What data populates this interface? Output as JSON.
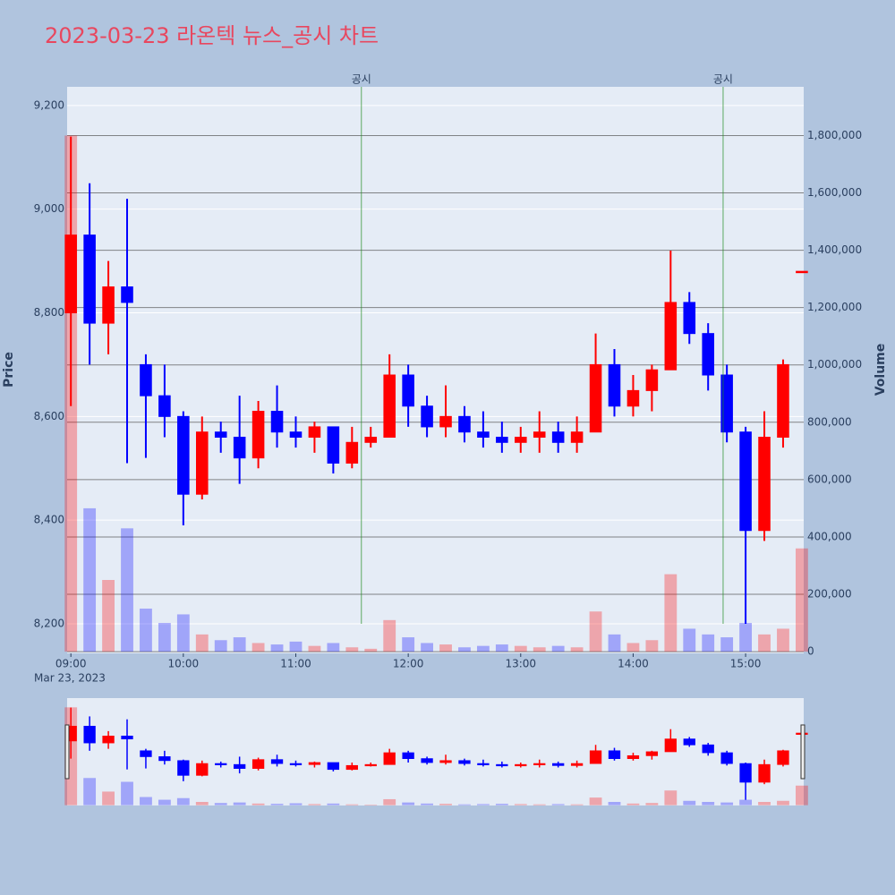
{
  "chart_data": {
    "type": "candlestick",
    "title": "2023-03-23 라온텍 뉴스_공시 차트",
    "y_title": "Price",
    "y2_title": "Volume",
    "increasing_color": "#ff0000",
    "decreasing_color": "#0000ff",
    "x": [
      "2023-03-23 09:00",
      "2023-03-23 09:10",
      "2023-03-23 09:20",
      "2023-03-23 09:30",
      "2023-03-23 09:40",
      "2023-03-23 09:50",
      "2023-03-23 10:00",
      "2023-03-23 10:10",
      "2023-03-23 10:20",
      "2023-03-23 10:30",
      "2023-03-23 10:40",
      "2023-03-23 10:50",
      "2023-03-23 11:00",
      "2023-03-23 11:10",
      "2023-03-23 11:20",
      "2023-03-23 11:30",
      "2023-03-23 11:40",
      "2023-03-23 11:50",
      "2023-03-23 12:00",
      "2023-03-23 12:10",
      "2023-03-23 12:20",
      "2023-03-23 12:30",
      "2023-03-23 12:40",
      "2023-03-23 12:50",
      "2023-03-23 13:00",
      "2023-03-23 13:10",
      "2023-03-23 13:20",
      "2023-03-23 13:30",
      "2023-03-23 13:40",
      "2023-03-23 13:50",
      "2023-03-23 14:00",
      "2023-03-23 14:10",
      "2023-03-23 14:20",
      "2023-03-23 14:30",
      "2023-03-23 14:40",
      "2023-03-23 14:50",
      "2023-03-23 15:00",
      "2023-03-23 15:10",
      "2023-03-23 15:20",
      "2023-03-23 15:30"
    ],
    "open": [
      8800,
      8950,
      8780,
      8850,
      8700,
      8640,
      8600,
      8450,
      8570,
      8560,
      8520,
      8610,
      8570,
      8560,
      8580,
      8510,
      8550,
      8560,
      8680,
      8620,
      8580,
      8600,
      8570,
      8560,
      8550,
      8560,
      8570,
      8550,
      8570,
      8700,
      8620,
      8650,
      8690,
      8820,
      8760,
      8680,
      8570,
      8380,
      8560,
      8880
    ],
    "high": [
      9140,
      9050,
      8900,
      9020,
      8720,
      8700,
      8610,
      8600,
      8590,
      8640,
      8630,
      8660,
      8600,
      8590,
      8580,
      8580,
      8580,
      8720,
      8700,
      8640,
      8660,
      8620,
      8610,
      8590,
      8580,
      8610,
      8590,
      8600,
      8760,
      8730,
      8680,
      8700,
      8920,
      8840,
      8780,
      8700,
      8580,
      8610,
      8710,
      8880
    ],
    "low": [
      8620,
      8700,
      8720,
      8510,
      8520,
      8560,
      8390,
      8440,
      8530,
      8470,
      8500,
      8540,
      8540,
      8530,
      8490,
      8500,
      8540,
      8560,
      8580,
      8560,
      8560,
      8550,
      8540,
      8530,
      8530,
      8530,
      8530,
      8530,
      8570,
      8600,
      8600,
      8610,
      8690,
      8740,
      8650,
      8550,
      8200,
      8360,
      8540,
      8880
    ],
    "close": [
      8950,
      8780,
      8850,
      8820,
      8640,
      8600,
      8450,
      8570,
      8560,
      8520,
      8610,
      8570,
      8560,
      8580,
      8510,
      8550,
      8560,
      8680,
      8620,
      8580,
      8600,
      8570,
      8560,
      8550,
      8560,
      8570,
      8550,
      8570,
      8700,
      8620,
      8650,
      8690,
      8820,
      8760,
      8680,
      8570,
      8380,
      8560,
      8700,
      8880
    ],
    "volume": [
      1800000,
      500000,
      250000,
      430000,
      150000,
      100000,
      130000,
      60000,
      40000,
      50000,
      30000,
      25000,
      35000,
      20000,
      30000,
      15000,
      10000,
      110000,
      50000,
      30000,
      25000,
      15000,
      20000,
      25000,
      20000,
      15000,
      20000,
      15000,
      140000,
      60000,
      30000,
      40000,
      270000,
      80000,
      60000,
      50000,
      100000,
      60000,
      80000,
      360000
    ],
    "xlim": [
      "2023-03-23 08:58",
      "2023-03-23 15:31"
    ],
    "xticks": [
      {
        "value": "2023-03-23 09:00",
        "label": "09:00"
      },
      {
        "value": "2023-03-23 10:00",
        "label": "10:00"
      },
      {
        "value": "2023-03-23 11:00",
        "label": "11:00"
      },
      {
        "value": "2023-03-23 12:00",
        "label": "12:00"
      },
      {
        "value": "2023-03-23 13:00",
        "label": "13:00"
      },
      {
        "value": "2023-03-23 14:00",
        "label": "14:00"
      },
      {
        "value": "2023-03-23 15:00",
        "label": "15:00"
      }
    ],
    "x_date_label": "Mar 23, 2023",
    "ylim": [
      8143,
      9236
    ],
    "yticks": [
      {
        "value": 8200,
        "label": "8,200"
      },
      {
        "value": 8400,
        "label": "8,400"
      },
      {
        "value": 8600,
        "label": "8,600"
      },
      {
        "value": 8800,
        "label": "8,800"
      },
      {
        "value": 9000,
        "label": "9,000"
      },
      {
        "value": 9200,
        "label": "9,200"
      }
    ],
    "y2lim": [
      -6000,
      1970000
    ],
    "y2ticks": [
      0,
      {
        "value": 200000,
        "label": "200,000"
      },
      {
        "value": 400000,
        "label": "400,000"
      },
      {
        "value": 600000,
        "label": "600,000"
      },
      {
        "value": 800000,
        "label": "800,000"
      },
      {
        "value": 1000000,
        "label": "1,000,000"
      },
      {
        "value": 1200000,
        "label": "1,200,000"
      },
      {
        "value": 1400000,
        "label": "1,400,000"
      },
      {
        "value": 1600000,
        "label": "1,600,000"
      },
      {
        "value": 1800000,
        "label": "1,800,000"
      }
    ],
    "annotations": [
      {
        "x": "2023-03-23 11:35",
        "text": "공시"
      },
      {
        "x": "2023-03-23 14:48",
        "text": "공시"
      }
    ],
    "annotation_line_color": "#228b22",
    "rangeslider": true
  }
}
